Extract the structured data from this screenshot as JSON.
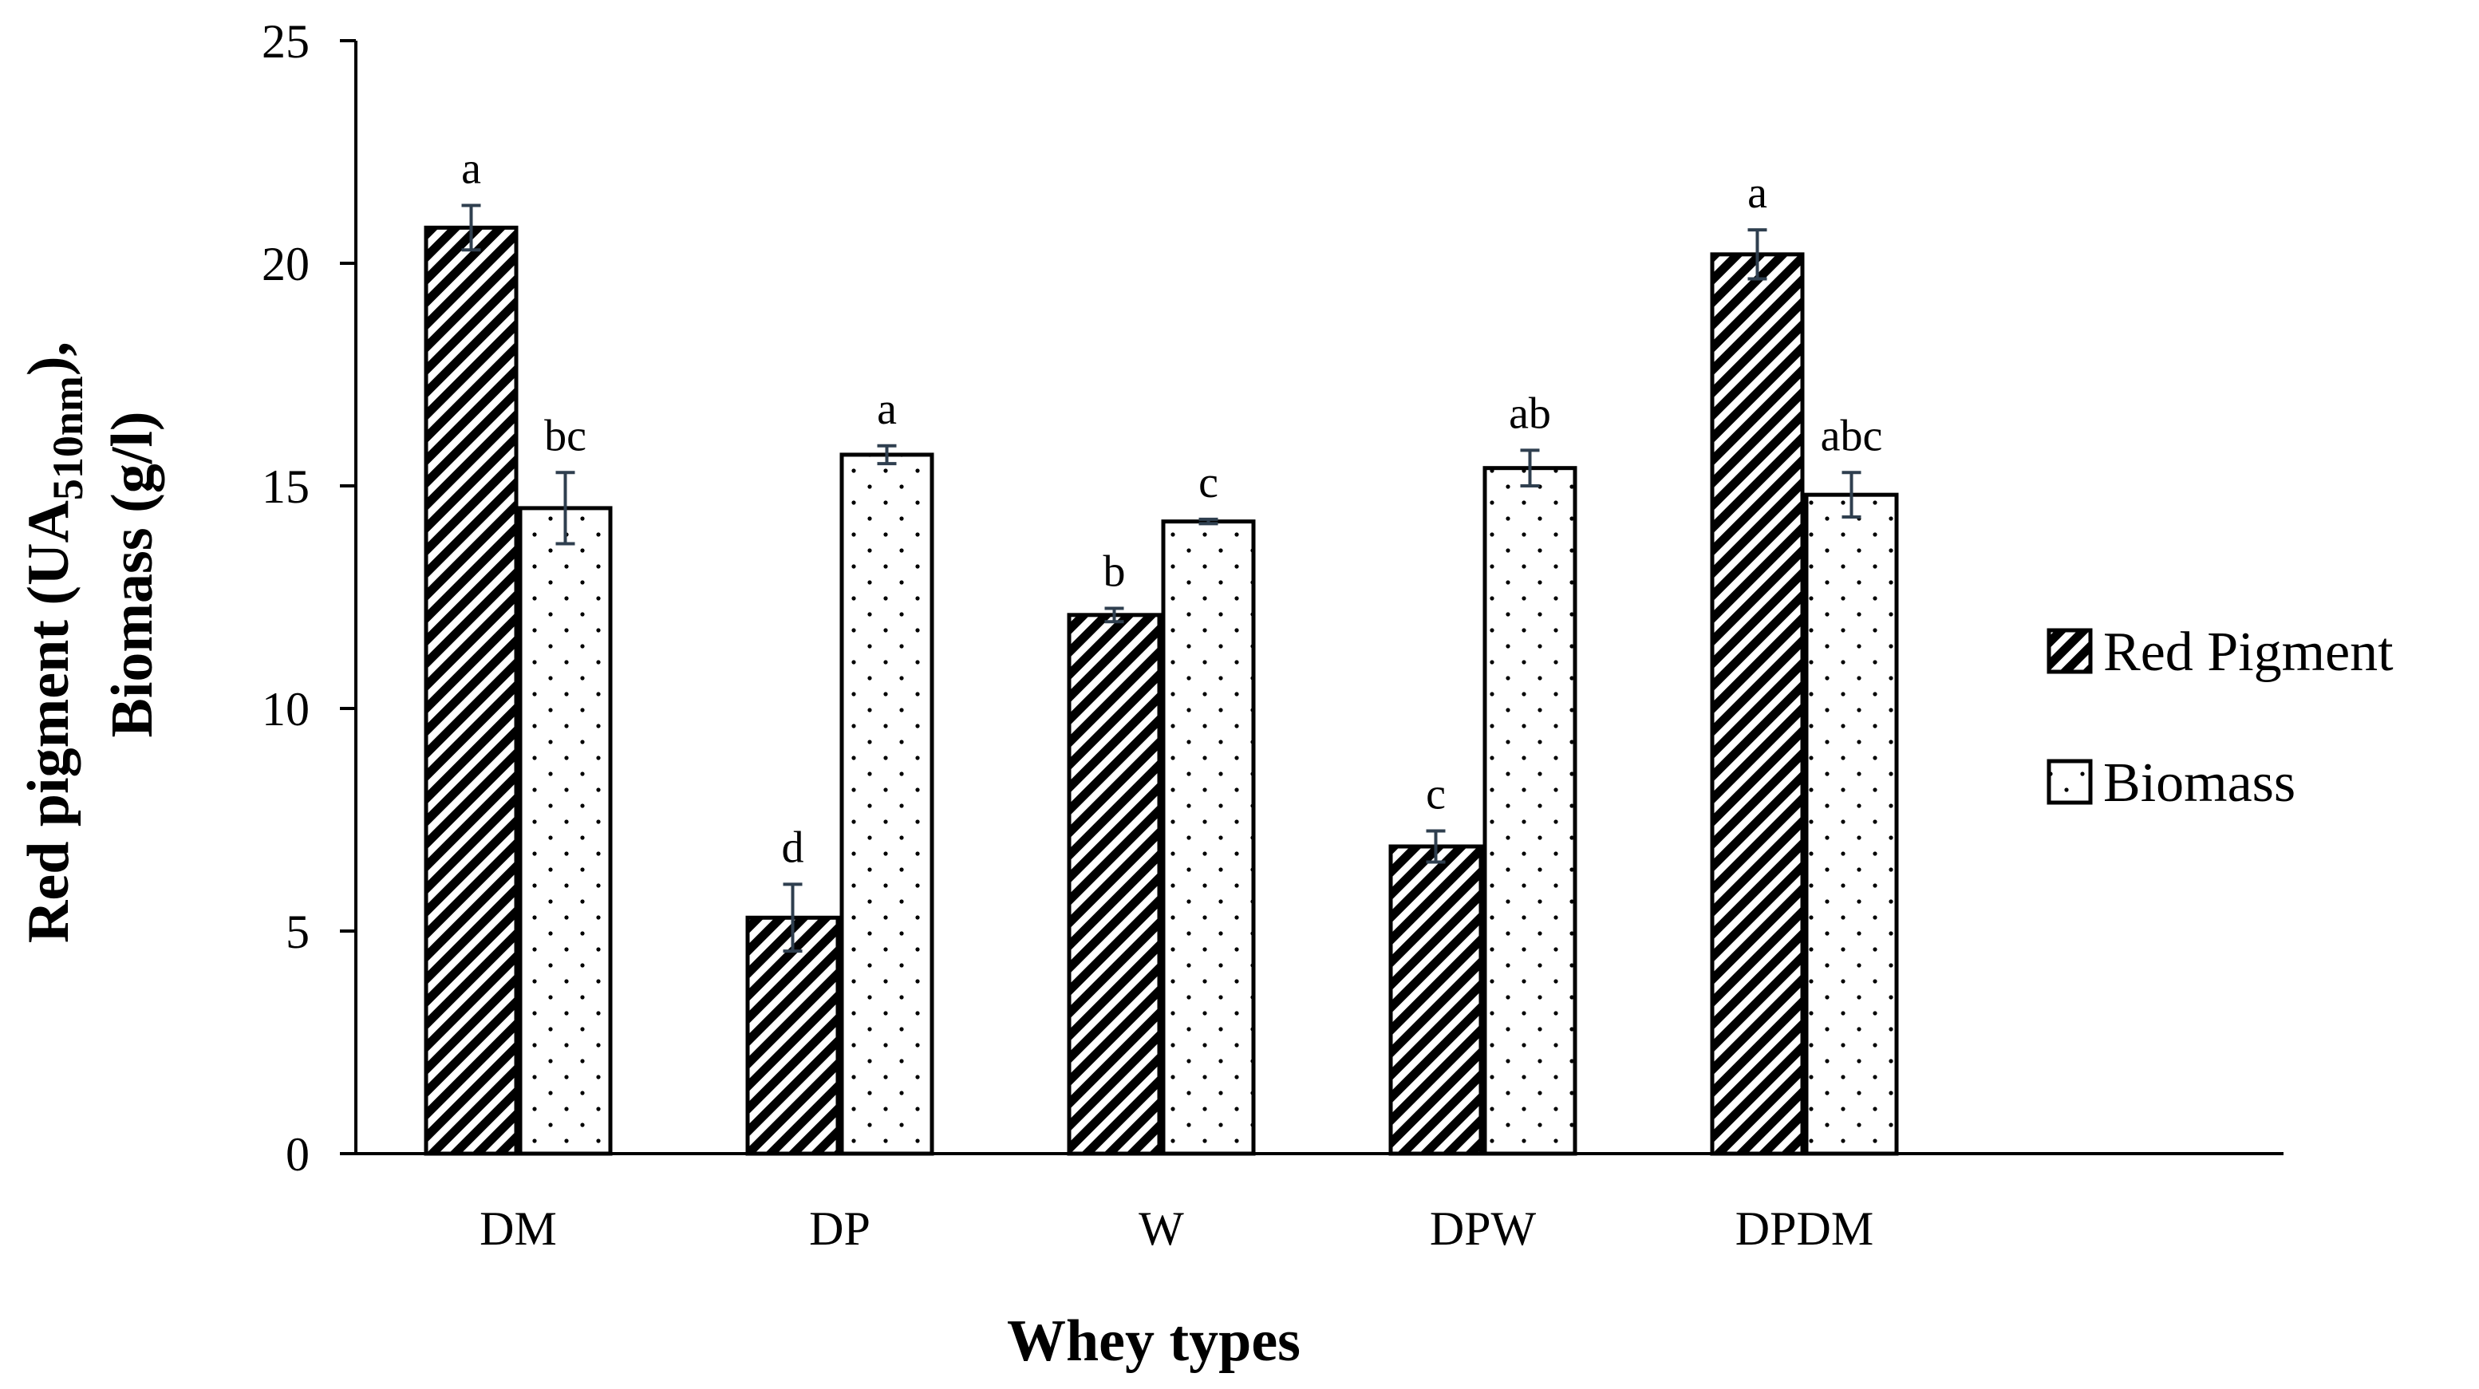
{
  "chart_data": {
    "type": "bar",
    "title": "",
    "xlabel": "Whey types",
    "ylabel_line1_prefix": "Red pigment  (UA",
    "ylabel_line1_sub": "510nm",
    "ylabel_line1_suffix": "),",
    "ylabel_line2": "Biomass (g/l)",
    "ylim": [
      0,
      25
    ],
    "yticks": [
      0,
      5,
      10,
      15,
      20,
      25
    ],
    "grid": false,
    "legend_position": "right",
    "categories": [
      "DM",
      "DP",
      "W",
      "DPW",
      "DPDM"
    ],
    "series": [
      {
        "name": "Red Pigment",
        "pattern": "diagonal-hatch",
        "values": [
          20.8,
          5.3,
          12.1,
          6.9,
          20.2
        ],
        "errors": [
          0.5,
          0.75,
          0.15,
          0.35,
          0.55
        ],
        "letters": [
          "a",
          "d",
          "b",
          "c",
          "a"
        ]
      },
      {
        "name": "Biomass",
        "pattern": "dots",
        "values": [
          14.5,
          15.7,
          14.2,
          15.4,
          14.8
        ],
        "errors": [
          0.8,
          0.2,
          0.05,
          0.4,
          0.5
        ],
        "letters": [
          "bc",
          "a",
          "c",
          "ab",
          "abc"
        ]
      }
    ]
  },
  "colors": {
    "bar_outline": "#000000",
    "error_bar": "#2f3f4f",
    "axis": "#000000",
    "background": "#ffffff"
  }
}
